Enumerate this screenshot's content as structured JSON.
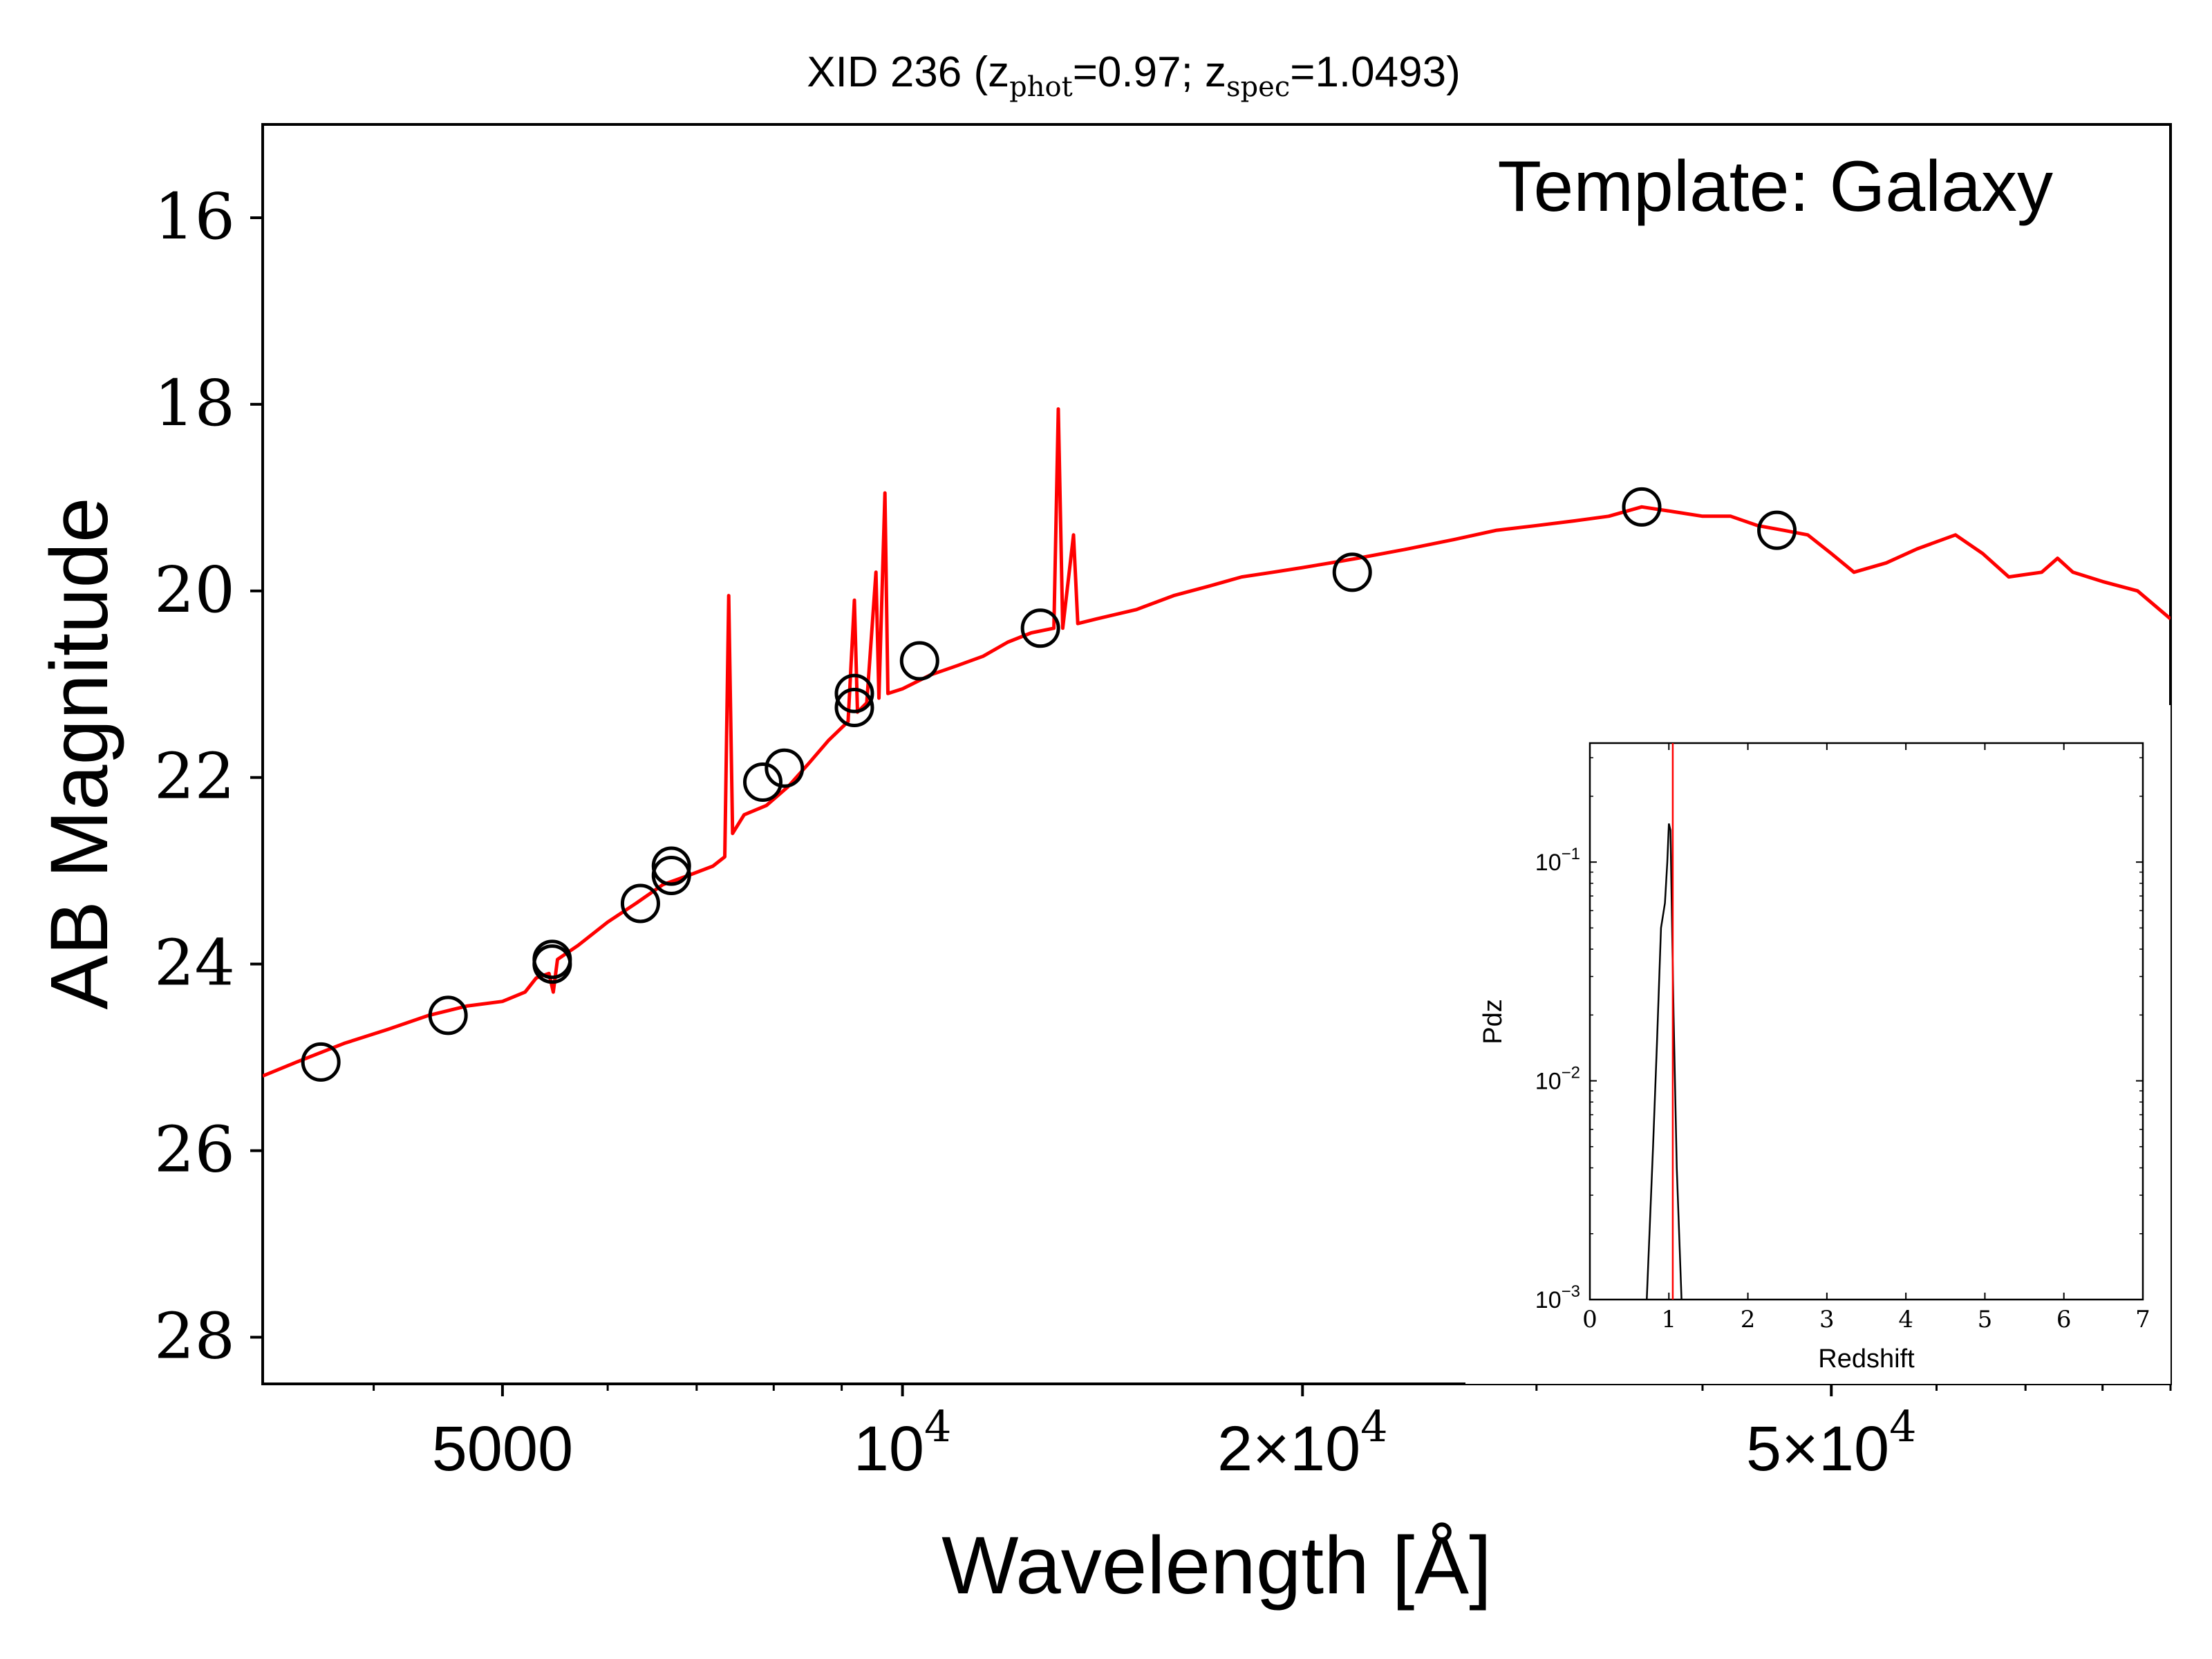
{
  "chart_data": [
    {
      "type": "line",
      "title_parts": {
        "prefix": "XID 236 (z",
        "sub1": "phot",
        "mid": "=0.97; z",
        "sub2": "spec",
        "suffix": "=1.0493)"
      },
      "xlabel": "Wavelength [Å]",
      "ylabel": "AB Magnitude",
      "annotation": "Template: Galaxy",
      "x_scale": "log",
      "xlim": [
        3300,
        90000
      ],
      "ylim": [
        28.5,
        15
      ],
      "y_inverted": true,
      "yticks": [
        16,
        18,
        20,
        22,
        24,
        26,
        28
      ],
      "ytick_labels": [
        "16",
        "18",
        "20",
        "22",
        "24",
        "26",
        "28"
      ],
      "xticks": [
        {
          "value": 5000,
          "label": "5000"
        },
        {
          "value": 10000,
          "label": "10",
          "exp": "4"
        },
        {
          "value": 20000,
          "label": "2×10",
          "exp": "4"
        },
        {
          "value": 50000,
          "label": "5×10",
          "exp": "4"
        }
      ],
      "series": [
        {
          "role": "template",
          "color": "#ff0000",
          "points": [
            [
              3300,
              25.2
            ],
            [
              3500,
              25.05
            ],
            [
              3800,
              24.85
            ],
            [
              4100,
              24.7
            ],
            [
              4400,
              24.55
            ],
            [
              4700,
              24.45
            ],
            [
              5000,
              24.4
            ],
            [
              5200,
              24.3
            ],
            [
              5300,
              24.15
            ],
            [
              5420,
              24.1
            ],
            [
              5460,
              24.3
            ],
            [
              5500,
              23.95
            ],
            [
              5700,
              23.8
            ],
            [
              6000,
              23.55
            ],
            [
              6300,
              23.35
            ],
            [
              6600,
              23.15
            ],
            [
              6900,
              23.05
            ],
            [
              7200,
              22.95
            ],
            [
              7350,
              22.85
            ],
            [
              7400,
              20.05
            ],
            [
              7450,
              22.6
            ],
            [
              7600,
              22.4
            ],
            [
              7900,
              22.3
            ],
            [
              8200,
              22.1
            ],
            [
              8500,
              21.85
            ],
            [
              8800,
              21.6
            ],
            [
              9100,
              21.4
            ],
            [
              9200,
              20.1
            ],
            [
              9250,
              21.3
            ],
            [
              9400,
              21.2
            ],
            [
              9550,
              19.8
            ],
            [
              9600,
              21.15
            ],
            [
              9700,
              18.95
            ],
            [
              9750,
              21.1
            ],
            [
              10000,
              21.05
            ],
            [
              10500,
              20.9
            ],
            [
              11000,
              20.8
            ],
            [
              11500,
              20.7
            ],
            [
              12000,
              20.55
            ],
            [
              12500,
              20.45
            ],
            [
              13000,
              20.4
            ],
            [
              13100,
              18.05
            ],
            [
              13200,
              20.4
            ],
            [
              13450,
              19.4
            ],
            [
              13550,
              20.35
            ],
            [
              14000,
              20.3
            ],
            [
              15000,
              20.2
            ],
            [
              16000,
              20.05
            ],
            [
              17000,
              19.95
            ],
            [
              18000,
              19.85
            ],
            [
              19000,
              19.8
            ],
            [
              20000,
              19.75
            ],
            [
              21000,
              19.7
            ],
            [
              22000,
              19.65
            ],
            [
              24000,
              19.55
            ],
            [
              26000,
              19.45
            ],
            [
              28000,
              19.35
            ],
            [
              30000,
              19.3
            ],
            [
              32000,
              19.25
            ],
            [
              34000,
              19.2
            ],
            [
              36000,
              19.1
            ],
            [
              38000,
              19.15
            ],
            [
              40000,
              19.2
            ],
            [
              42000,
              19.2
            ],
            [
              44000,
              19.3
            ],
            [
              46000,
              19.35
            ],
            [
              48000,
              19.4
            ],
            [
              50000,
              19.6
            ],
            [
              52000,
              19.8
            ],
            [
              55000,
              19.7
            ],
            [
              58000,
              19.55
            ],
            [
              62000,
              19.4
            ],
            [
              65000,
              19.6
            ],
            [
              68000,
              19.85
            ],
            [
              72000,
              19.8
            ],
            [
              74000,
              19.65
            ],
            [
              76000,
              19.8
            ],
            [
              80000,
              19.9
            ],
            [
              85000,
              20.0
            ],
            [
              90000,
              20.3
            ]
          ]
        },
        {
          "role": "photometry",
          "marker": "open-circle",
          "points": [
            [
              3650,
              25.05
            ],
            [
              4550,
              24.55
            ],
            [
              5450,
              23.95
            ],
            [
              5450,
              24.0
            ],
            [
              6350,
              23.35
            ],
            [
              6700,
              22.95
            ],
            [
              6700,
              23.05
            ],
            [
              7850,
              22.05
            ],
            [
              8150,
              21.9
            ],
            [
              9200,
              21.1
            ],
            [
              9200,
              21.25
            ],
            [
              10300,
              20.75
            ],
            [
              12700,
              20.4
            ],
            [
              21800,
              19.8
            ],
            [
              36000,
              19.1
            ],
            [
              45500,
              19.35
            ]
          ]
        }
      ]
    },
    {
      "type": "line",
      "role": "inset",
      "xlabel": "Redshift",
      "ylabel": "Pdz",
      "x_scale": "linear",
      "y_scale": "log",
      "xlim": [
        0,
        7
      ],
      "ylim": [
        0.001,
        0.35
      ],
      "xticks": [
        0,
        1,
        2,
        3,
        4,
        5,
        6,
        7
      ],
      "xtick_labels": [
        "0",
        "1",
        "2",
        "3",
        "4",
        "5",
        "6",
        "7"
      ],
      "yticks": [
        {
          "value": 0.1,
          "label": "10",
          "exp": "−1"
        },
        {
          "value": 0.01,
          "label": "10",
          "exp": "−2"
        },
        {
          "value": 0.001,
          "label": "10",
          "exp": "−3"
        }
      ],
      "series": [
        {
          "role": "pdz",
          "color": "#000000",
          "points": [
            [
              0.72,
              0.001
            ],
            [
              0.8,
              0.005
            ],
            [
              0.85,
              0.015
            ],
            [
              0.9,
              0.05
            ],
            [
              0.95,
              0.065
            ],
            [
              0.98,
              0.1
            ],
            [
              1.0,
              0.15
            ],
            [
              1.02,
              0.14
            ],
            [
              1.06,
              0.02
            ],
            [
              1.1,
              0.004
            ],
            [
              1.16,
              0.001
            ]
          ]
        }
      ],
      "vline": {
        "x": 1.0493,
        "color": "#ff0000"
      }
    }
  ]
}
